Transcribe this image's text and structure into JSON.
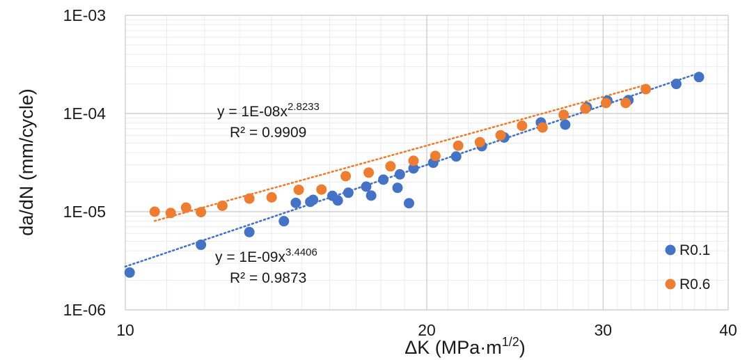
{
  "chart_data": {
    "type": "scatter",
    "xscale": "log",
    "yscale": "log",
    "xlim": [
      10,
      40
    ],
    "ylim": [
      1e-06,
      0.001
    ],
    "grid": true,
    "legend_position": "right",
    "xlabel": "ΔK (MPa·m",
    "xlabel_sup": "1/2",
    "xlabel_end": ")",
    "ylabel": "da/dN (mm/cycle)",
    "x_ticks": [
      "10",
      "20",
      "30",
      "40"
    ],
    "x_tick_values": [
      10,
      20,
      30,
      40
    ],
    "y_ticks": [
      "1E-06",
      "1E-05",
      "1E-04",
      "1E-03"
    ],
    "y_tick_values": [
      1e-06,
      1e-05,
      0.0001,
      0.001
    ],
    "series": [
      {
        "name": "R0.1",
        "color": "#4472C4",
        "points": [
          [
            10.1,
            2.4e-06
          ],
          [
            11.9,
            4.6e-06
          ],
          [
            13.3,
            6.2e-06
          ],
          [
            14.4,
            8e-06
          ],
          [
            14.8,
            1.23e-05
          ],
          [
            15.3,
            1.26e-05
          ],
          [
            15.4,
            1.32e-05
          ],
          [
            16.1,
            1.45e-05
          ],
          [
            16.3,
            1.3e-05
          ],
          [
            16.7,
            1.56e-05
          ],
          [
            17.4,
            1.8e-05
          ],
          [
            17.6,
            1.46e-05
          ],
          [
            18.1,
            2.12e-05
          ],
          [
            18.7,
            1.75e-05
          ],
          [
            18.8,
            2.4e-05
          ],
          [
            19.2,
            1.22e-05
          ],
          [
            19.4,
            2.76e-05
          ],
          [
            20.3,
            3.15e-05
          ],
          [
            21.4,
            3.65e-05
          ],
          [
            22.7,
            4.65e-05
          ],
          [
            23.9,
            5.7e-05
          ],
          [
            26.0,
            8.1e-05
          ],
          [
            27.5,
            7.7e-05
          ],
          [
            28.9,
            0.000116
          ],
          [
            30.3,
            0.000135
          ],
          [
            31.8,
            0.000137
          ],
          [
            35.5,
            0.0002
          ],
          [
            37.4,
            0.000235
          ]
        ]
      },
      {
        "name": "R0.6",
        "color": "#ED7D31",
        "points": [
          [
            10.7,
            1e-05
          ],
          [
            11.1,
            9.7e-06
          ],
          [
            11.5,
            1.1e-05
          ],
          [
            11.9,
            9.9e-06
          ],
          [
            12.5,
            1.15e-05
          ],
          [
            13.3,
            1.36e-05
          ],
          [
            14.0,
            1.4e-05
          ],
          [
            14.9,
            1.67e-05
          ],
          [
            15.7,
            1.68e-05
          ],
          [
            16.6,
            2.3e-05
          ],
          [
            17.5,
            2.5e-05
          ],
          [
            18.4,
            2.9e-05
          ],
          [
            19.4,
            3.3e-05
          ],
          [
            20.4,
            3.7e-05
          ],
          [
            21.5,
            4.7e-05
          ],
          [
            22.6,
            5.1e-05
          ],
          [
            23.7,
            6e-05
          ],
          [
            24.9,
            7.5e-05
          ],
          [
            26.1,
            7.2e-05
          ],
          [
            27.4,
            9.7e-05
          ],
          [
            28.8,
            0.000112
          ],
          [
            30.2,
            0.000128
          ],
          [
            31.6,
            0.000128
          ],
          [
            33.1,
            0.000177
          ]
        ]
      }
    ],
    "trendlines": [
      {
        "series": "R0.1",
        "coefficient": 1e-09,
        "exponent": 3.4406,
        "x_range": [
          10,
          37.4
        ],
        "equation_prefix": "y = 1E-09x",
        "equation_exponent": "3.4406",
        "r_squared": "R² = 0.9873"
      },
      {
        "series": "R0.6",
        "coefficient": 1e-08,
        "exponent": 2.8233,
        "x_range": [
          10.7,
          33.1
        ],
        "equation_prefix": "y = 1E-08x",
        "equation_exponent": "2.8233",
        "r_squared": "R² = 0.9909"
      }
    ]
  }
}
